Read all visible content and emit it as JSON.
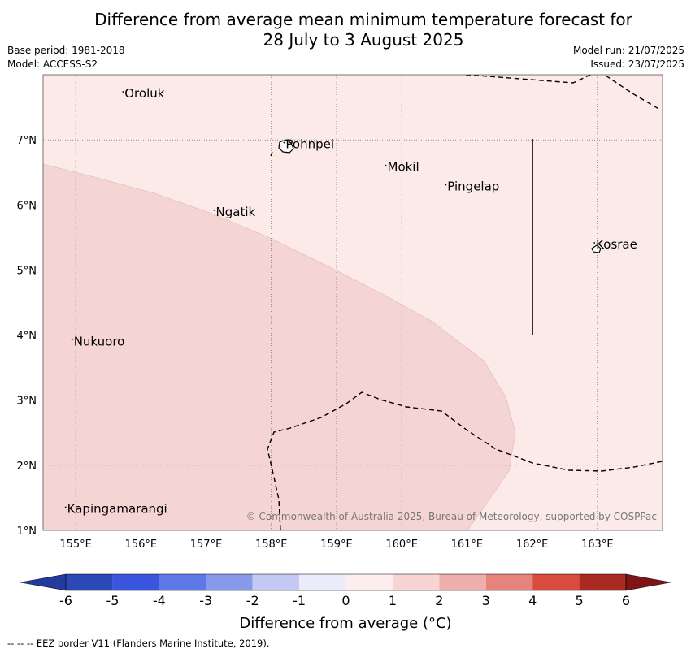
{
  "title": {
    "line1": "Difference from average mean minimum temperature forecast for",
    "line2": "28 July to 3 August 2025"
  },
  "meta": {
    "base_period": "Base period: 1981-2018",
    "model": "Model: ACCESS-S2",
    "model_run": "Model run: 21/07/2025",
    "issued": "Issued: 23/07/2025"
  },
  "map": {
    "extent": {
      "lon": [
        154.5,
        164.0
      ],
      "lat": [
        1.0,
        8.0
      ]
    },
    "lon_ticks": [
      {
        "value": 155,
        "label": "155°E"
      },
      {
        "value": 156,
        "label": "156°E"
      },
      {
        "value": 157,
        "label": "157°E"
      },
      {
        "value": 158,
        "label": "158°E"
      },
      {
        "value": 159,
        "label": "159°E"
      },
      {
        "value": 160,
        "label": "160°E"
      },
      {
        "value": 161,
        "label": "161°E"
      },
      {
        "value": 162,
        "label": "162°E"
      },
      {
        "value": 163,
        "label": "163°E"
      }
    ],
    "lat_ticks": [
      {
        "value": 7,
        "label": "7°N"
      },
      {
        "value": 6,
        "label": "6°N"
      },
      {
        "value": 5,
        "label": "5°N"
      },
      {
        "value": 4,
        "label": "4°N"
      },
      {
        "value": 3,
        "label": "3°N"
      },
      {
        "value": 2,
        "label": "2°N"
      },
      {
        "value": 1,
        "label": "1°N"
      }
    ],
    "background_fill": "#fbeae8",
    "anomaly_region_fill": "#f5d5d3",
    "places": [
      {
        "name": "Oroluk",
        "lon": 155.75,
        "lat": 7.65
      },
      {
        "name": "Pohnpei",
        "lon": 158.22,
        "lat": 6.87
      },
      {
        "name": "Mokil",
        "lon": 159.78,
        "lat": 6.52
      },
      {
        "name": "Pingelap",
        "lon": 160.7,
        "lat": 6.22
      },
      {
        "name": "Ngatik",
        "lon": 157.15,
        "lat": 5.83
      },
      {
        "name": "Kosrae",
        "lon": 162.98,
        "lat": 5.33
      },
      {
        "name": "Nukuoro",
        "lon": 154.97,
        "lat": 3.84
      },
      {
        "name": "Kapingamarangi",
        "lon": 154.87,
        "lat": 1.27
      }
    ],
    "copyright": "© Commonwealth of Australia 2025, Bureau of Meteorology, supported by COSPPac"
  },
  "colorbar": {
    "colors": [
      "#243a9d",
      "#2c48b5",
      "#3b56de",
      "#5e79e5",
      "#8799e8",
      "#c3c9f2",
      "#ebebfa",
      "#fdeeee",
      "#f7d5d4",
      "#eeaeab",
      "#e6837d",
      "#d84b3f",
      "#a92923",
      "#7f1414"
    ],
    "ticks": [
      "-6",
      "-5",
      "-4",
      "-3",
      "-2",
      "-1",
      "0",
      "1",
      "2",
      "3",
      "4",
      "5",
      "6"
    ],
    "label": "Difference from average (°C)"
  },
  "footnote": "--  --  -- EEZ border V11 (Flanders Marine Institute, 2019)."
}
